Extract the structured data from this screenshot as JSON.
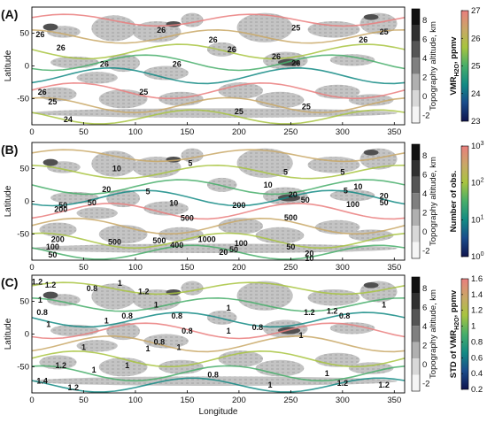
{
  "chart_data": [
    {
      "type": "contour",
      "panel_label": "(A)",
      "xlabel": "",
      "ylabel": "Latitude",
      "xlim": [
        0,
        360
      ],
      "ylim": [
        -90,
        90
      ],
      "xticks": [
        "0",
        "50",
        "100",
        "150",
        "200",
        "250",
        "300",
        "350"
      ],
      "yticks": [
        "50",
        "0",
        "-50"
      ],
      "topo_colorbar": {
        "label": "Topography altitude, km",
        "ticks": [
          "8",
          "6",
          "4",
          "2",
          "0",
          "-2"
        ],
        "colors": [
          "#101010",
          "#303030",
          "#555555",
          "#808080",
          "#b0b0b0",
          "#d8d8d8",
          "#f5f5f5"
        ]
      },
      "value_colorbar": {
        "label": "VMR",
        "label_sub": "H2O",
        "label_unit": ", ppmv",
        "ticks": [
          "27",
          "26",
          "25",
          "24",
          "23"
        ],
        "gradient": [
          "#ea7e7e",
          "#c9a866",
          "#a8c43f",
          "#47ae6a",
          "#128a84",
          "#1a4d8c",
          "#10144e"
        ]
      },
      "contour_labels": [
        {
          "text": "26",
          "lon": 8,
          "lat": 48
        },
        {
          "text": "26",
          "lon": 28,
          "lat": 28
        },
        {
          "text": "26",
          "lon": 125,
          "lat": 55
        },
        {
          "text": "26",
          "lon": 70,
          "lat": 3
        },
        {
          "text": "26",
          "lon": 140,
          "lat": 3
        },
        {
          "text": "26",
          "lon": 175,
          "lat": 40
        },
        {
          "text": "26",
          "lon": 193,
          "lat": 25
        },
        {
          "text": "26",
          "lon": 236,
          "lat": 14
        },
        {
          "text": "26",
          "lon": 255,
          "lat": 4
        },
        {
          "text": "26",
          "lon": 320,
          "lat": 40
        },
        {
          "text": "25",
          "lon": 255,
          "lat": 58
        },
        {
          "text": "25",
          "lon": 340,
          "lat": 52
        },
        {
          "text": "26",
          "lon": 10,
          "lat": -40
        },
        {
          "text": "25",
          "lon": 20,
          "lat": -55
        },
        {
          "text": "24",
          "lon": 35,
          "lat": -82
        },
        {
          "text": "25",
          "lon": 108,
          "lat": -40
        },
        {
          "text": "25",
          "lon": 200,
          "lat": -70
        },
        {
          "text": "25",
          "lon": 265,
          "lat": -62
        }
      ]
    },
    {
      "type": "contour",
      "panel_label": "(B)",
      "xlabel": "",
      "ylabel": "Latitude",
      "xlim": [
        0,
        360
      ],
      "ylim": [
        -90,
        90
      ],
      "xticks": [
        "0",
        "50",
        "100",
        "150",
        "200",
        "250",
        "300",
        "350"
      ],
      "yticks": [
        "50",
        "0",
        "-50"
      ],
      "topo_colorbar": {
        "label": "Topography altitude, km",
        "ticks": [
          "8",
          "6",
          "4",
          "2",
          "0",
          "-2"
        ],
        "colors": [
          "#101010",
          "#303030",
          "#555555",
          "#808080",
          "#b0b0b0",
          "#d8d8d8",
          "#f5f5f5"
        ]
      },
      "value_colorbar": {
        "label": "Number of obs.",
        "log_scale": true,
        "ticks": [
          {
            "base": "10",
            "exp": "3"
          },
          {
            "base": "10",
            "exp": "2"
          },
          {
            "base": "10",
            "exp": "1"
          },
          {
            "base": "10",
            "exp": "0"
          }
        ],
        "gradient": [
          "#ea7e7e",
          "#c9a866",
          "#a8c43f",
          "#47ae6a",
          "#128a84",
          "#1a4d8c",
          "#10144e"
        ]
      },
      "contour_labels": [
        {
          "text": "10",
          "lon": 82,
          "lat": 50
        },
        {
          "text": "5",
          "lon": 153,
          "lat": 58
        },
        {
          "text": "20",
          "lon": 72,
          "lat": 18
        },
        {
          "text": "5",
          "lon": 112,
          "lat": 15
        },
        {
          "text": "5",
          "lon": 245,
          "lat": 45
        },
        {
          "text": "5",
          "lon": 300,
          "lat": 45
        },
        {
          "text": "10",
          "lon": 228,
          "lat": 25
        },
        {
          "text": "10",
          "lon": 315,
          "lat": 22
        },
        {
          "text": "5",
          "lon": 303,
          "lat": 16
        },
        {
          "text": "20",
          "lon": 252,
          "lat": 10
        },
        {
          "text": "50",
          "lon": 264,
          "lat": 2
        },
        {
          "text": "20",
          "lon": 340,
          "lat": 8
        },
        {
          "text": "50",
          "lon": 30,
          "lat": -6
        },
        {
          "text": "200",
          "lon": 28,
          "lat": -12
        },
        {
          "text": "50",
          "lon": 58,
          "lat": -2
        },
        {
          "text": "10",
          "lon": 137,
          "lat": -3
        },
        {
          "text": "200",
          "lon": 200,
          "lat": -6
        },
        {
          "text": "100",
          "lon": 310,
          "lat": -5
        },
        {
          "text": "50",
          "lon": 340,
          "lat": -2
        },
        {
          "text": "500",
          "lon": 150,
          "lat": -26
        },
        {
          "text": "500",
          "lon": 250,
          "lat": -25
        },
        {
          "text": "200",
          "lon": 25,
          "lat": -58
        },
        {
          "text": "100",
          "lon": 20,
          "lat": -70
        },
        {
          "text": "50",
          "lon": 20,
          "lat": -82
        },
        {
          "text": "500",
          "lon": 80,
          "lat": -62
        },
        {
          "text": "500",
          "lon": 123,
          "lat": -60
        },
        {
          "text": "400",
          "lon": 140,
          "lat": -67
        },
        {
          "text": "1000",
          "lon": 169,
          "lat": -58
        },
        {
          "text": "100",
          "lon": 202,
          "lat": -64
        },
        {
          "text": "50",
          "lon": 195,
          "lat": -74
        },
        {
          "text": "20",
          "lon": 185,
          "lat": -78
        },
        {
          "text": "50",
          "lon": 250,
          "lat": -70
        },
        {
          "text": "20",
          "lon": 268,
          "lat": -80
        },
        {
          "text": "10",
          "lon": 268,
          "lat": -87
        }
      ]
    },
    {
      "type": "contour",
      "panel_label": "(C)",
      "xlabel": "Longitude",
      "ylabel": "Latitude",
      "xlim": [
        0,
        360
      ],
      "ylim": [
        -90,
        90
      ],
      "xticks": [
        "0",
        "50",
        "100",
        "150",
        "200",
        "250",
        "300",
        "350"
      ],
      "yticks": [
        "50",
        "0",
        "-50"
      ],
      "topo_colorbar": {
        "label": "Topography altitude, km",
        "ticks": [
          "8",
          "6",
          "4",
          "2",
          "0",
          "-2"
        ],
        "colors": [
          "#101010",
          "#303030",
          "#555555",
          "#808080",
          "#b0b0b0",
          "#d8d8d8",
          "#f5f5f5"
        ]
      },
      "value_colorbar": {
        "label": "STD of VMR",
        "label_sub": "H2O",
        "label_unit": ", ppmv",
        "ticks": [
          "1.6",
          "1.4",
          "1.2",
          "1",
          "0.8",
          "0.6",
          "0.4",
          "0.2"
        ],
        "gradient": [
          "#ea7e7e",
          "#c9a866",
          "#a8c43f",
          "#47ae6a",
          "#128a84",
          "#1a4d8c",
          "#10144e"
        ]
      },
      "contour_labels": [
        {
          "text": "1.2",
          "lon": 5,
          "lat": 80
        },
        {
          "text": "1.2",
          "lon": 18,
          "lat": 75
        },
        {
          "text": "0.8",
          "lon": 58,
          "lat": 70
        },
        {
          "text": "1",
          "lon": 85,
          "lat": 78
        },
        {
          "text": "1",
          "lon": 8,
          "lat": 52
        },
        {
          "text": "0.8",
          "lon": 10,
          "lat": 33
        },
        {
          "text": "1",
          "lon": 16,
          "lat": 15
        },
        {
          "text": "1",
          "lon": 72,
          "lat": 20
        },
        {
          "text": "1",
          "lon": 120,
          "lat": 45
        },
        {
          "text": "1.2",
          "lon": 108,
          "lat": 65
        },
        {
          "text": "0.8",
          "lon": 140,
          "lat": 28
        },
        {
          "text": "0.8",
          "lon": 150,
          "lat": 5
        },
        {
          "text": "0.8",
          "lon": 123,
          "lat": -12
        },
        {
          "text": "1",
          "lon": 142,
          "lat": -20
        },
        {
          "text": "1",
          "lon": 190,
          "lat": 5
        },
        {
          "text": "1",
          "lon": 190,
          "lat": 40
        },
        {
          "text": "0.8",
          "lon": 218,
          "lat": 10
        },
        {
          "text": "1",
          "lon": 260,
          "lat": -2
        },
        {
          "text": "1.2",
          "lon": 268,
          "lat": 33
        },
        {
          "text": "1.2",
          "lon": 290,
          "lat": 35
        },
        {
          "text": "0.8",
          "lon": 302,
          "lat": 28
        },
        {
          "text": "1",
          "lon": 340,
          "lat": 45
        },
        {
          "text": "0.8",
          "lon": 92,
          "lat": 28
        },
        {
          "text": "1",
          "lon": 50,
          "lat": -20
        },
        {
          "text": "1",
          "lon": 112,
          "lat": -22
        },
        {
          "text": "1",
          "lon": 92,
          "lat": -48
        },
        {
          "text": "1.2",
          "lon": 28,
          "lat": -48
        },
        {
          "text": "1.4",
          "lon": 10,
          "lat": -72
        },
        {
          "text": "1.2",
          "lon": 40,
          "lat": -82
        },
        {
          "text": "1",
          "lon": 60,
          "lat": -55
        },
        {
          "text": "0.8",
          "lon": 175,
          "lat": -62
        },
        {
          "text": "1",
          "lon": 230,
          "lat": -78
        },
        {
          "text": "1",
          "lon": 285,
          "lat": -60
        },
        {
          "text": "1.2",
          "lon": 300,
          "lat": -75
        },
        {
          "text": "1.2",
          "lon": 340,
          "lat": -78
        }
      ]
    }
  ]
}
